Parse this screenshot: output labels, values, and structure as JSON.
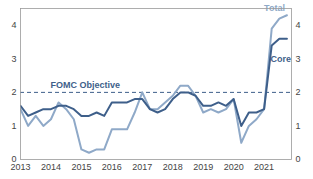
{
  "chart_data": {
    "type": "line",
    "x": [
      2013.0,
      2013.25,
      2013.5,
      2013.75,
      2014.0,
      2014.25,
      2014.5,
      2014.75,
      2015.0,
      2015.25,
      2015.5,
      2015.75,
      2016.0,
      2016.25,
      2016.5,
      2016.75,
      2017.0,
      2017.25,
      2017.5,
      2017.75,
      2018.0,
      2018.25,
      2018.5,
      2018.75,
      2019.0,
      2019.25,
      2019.5,
      2019.75,
      2020.0,
      2020.25,
      2020.5,
      2020.75,
      2021.0,
      2021.25,
      2021.5,
      2021.75
    ],
    "series": [
      {
        "name": "Total",
        "color": "#8fa9c8",
        "values": [
          1.5,
          1.0,
          1.3,
          1.0,
          1.2,
          1.7,
          1.5,
          1.2,
          0.3,
          0.2,
          0.3,
          0.3,
          0.9,
          0.9,
          0.9,
          1.4,
          2.0,
          1.5,
          1.5,
          1.7,
          1.9,
          2.2,
          2.2,
          1.9,
          1.4,
          1.5,
          1.4,
          1.5,
          1.8,
          0.5,
          1.0,
          1.2,
          1.5,
          3.9,
          4.2,
          4.3
        ]
      },
      {
        "name": "Core",
        "color": "#3e5f8a",
        "values": [
          1.6,
          1.3,
          1.4,
          1.5,
          1.5,
          1.6,
          1.6,
          1.5,
          1.3,
          1.3,
          1.4,
          1.3,
          1.7,
          1.7,
          1.7,
          1.8,
          1.8,
          1.5,
          1.4,
          1.5,
          1.8,
          2.0,
          2.0,
          1.9,
          1.6,
          1.6,
          1.7,
          1.6,
          1.8,
          1.0,
          1.4,
          1.4,
          1.5,
          3.4,
          3.6,
          3.6
        ]
      }
    ],
    "xlim": [
      2013,
      2021.9
    ],
    "xticks": [
      2013,
      2014,
      2015,
      2016,
      2017,
      2018,
      2019,
      2020,
      2021
    ],
    "ylim": [
      0,
      4.5
    ],
    "yticks": [
      0,
      1,
      2,
      3,
      4
    ],
    "y2lim": [
      0,
      4.5
    ],
    "y2ticks": [
      0,
      1,
      2,
      3,
      4
    ],
    "annotations": [
      {
        "text": "FOMC Objective",
        "y": 2,
        "line_style": "dashed"
      }
    ],
    "grid": false
  }
}
